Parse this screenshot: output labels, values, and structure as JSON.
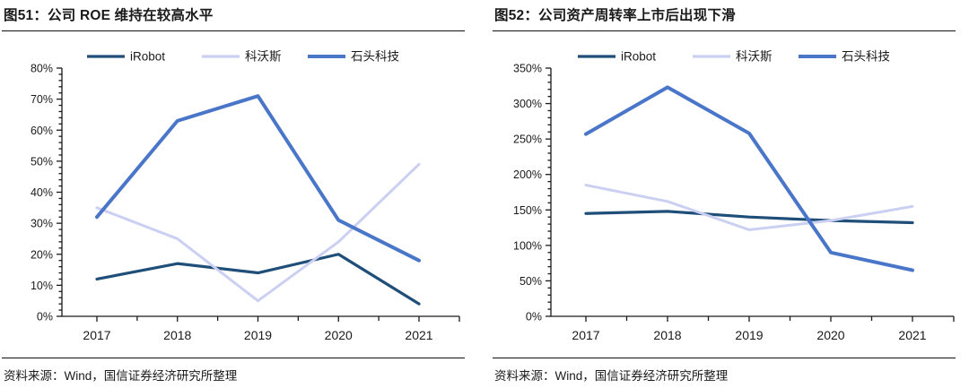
{
  "colors": {
    "axis": "#1a1a1a",
    "text": "#1a1a1a",
    "rule": "#111111",
    "irobot": "#1F4E79",
    "ecovacs": "#CBD0F2",
    "roborock": "#4A76C9"
  },
  "panels": [
    {
      "title": "图51：公司 ROE 维持在较高水平",
      "source": "资料来源：Wind，国信证券经济研究所整理"
    },
    {
      "title": "图52：公司资产周转率上市后出现下滑",
      "source": "资料来源：Wind，国信证券经济研究所整理"
    }
  ],
  "chart_data": [
    {
      "type": "line",
      "title": "图51：公司 ROE 维持在较高水平",
      "x_categories": [
        "2017",
        "2018",
        "2019",
        "2020",
        "2021"
      ],
      "series": [
        {
          "name": "iRobot",
          "color": "#1F4E79",
          "values": [
            12,
            17,
            14,
            20,
            4
          ]
        },
        {
          "name": "科沃斯",
          "color": "#CBD0F2",
          "values": [
            35,
            25,
            5,
            24,
            49
          ]
        },
        {
          "name": "石头科技",
          "color": "#4A76C9",
          "values": [
            32,
            63,
            71,
            31,
            18
          ]
        }
      ],
      "ylabel": "",
      "xlabel": "",
      "ylim": [
        0,
        80
      ],
      "ytick_step": 10,
      "yminor_step": 2,
      "ytick_labels": [
        "0%",
        "10%",
        "20%",
        "30%",
        "40%",
        "50%",
        "60%",
        "70%",
        "80%"
      ],
      "yunit": "%",
      "legend_position": "top",
      "grid": false
    },
    {
      "type": "line",
      "title": "图52：公司资产周转率上市后出现下滑",
      "x_categories": [
        "2017",
        "2018",
        "2019",
        "2020",
        "2021"
      ],
      "series": [
        {
          "name": "iRobot",
          "color": "#1F4E79",
          "values": [
            145,
            148,
            140,
            135,
            132
          ]
        },
        {
          "name": "科沃斯",
          "color": "#CBD0F2",
          "values": [
            185,
            162,
            122,
            135,
            155
          ]
        },
        {
          "name": "石头科技",
          "color": "#4A76C9",
          "values": [
            257,
            323,
            258,
            90,
            65
          ]
        }
      ],
      "ylabel": "",
      "xlabel": "",
      "ylim": [
        0,
        350
      ],
      "ytick_step": 50,
      "yminor_step": 10,
      "ytick_labels": [
        "0%",
        "50%",
        "100%",
        "150%",
        "200%",
        "250%",
        "300%",
        "350%"
      ],
      "yunit": "%",
      "legend_position": "top",
      "grid": false
    }
  ]
}
